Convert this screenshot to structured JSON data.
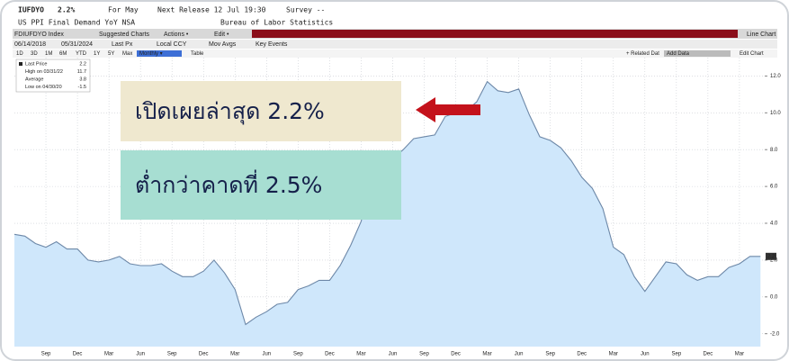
{
  "header": {
    "ticker": "IUFDYO",
    "last": "2.2%",
    "period": "For May",
    "next_release": "Next Release 12 Jul 19:30",
    "survey": "Survey --",
    "description": "US PPI Final Demand YoY NSA",
    "source": "Bureau of Labor Statistics"
  },
  "toolbar": {
    "security": "FDIUFDYO Index",
    "suggested": "Suggested Charts",
    "actions": "Actions •",
    "edit": "Edit •",
    "chart_type": "Line Chart"
  },
  "settings": {
    "start_date": "06/14/2018",
    "end_date": "05/31/2024",
    "field": "Last Px",
    "currency": "Local CCY",
    "mov_avgs": "Mov Avgs",
    "key_events": "Key Events"
  },
  "periods": [
    "1D",
    "3D",
    "1M",
    "6M",
    "YTD",
    "1Y",
    "5Y",
    "Max",
    "Monthly ▾",
    "Table"
  ],
  "right_tools": {
    "related": "+ Related Dat",
    "add_data": "Add Data",
    "edit_chart": "Edit Chart"
  },
  "overlays": [
    "เปิดเผยล่าสุด 2.2%",
    "ต่ำกว่าคาดที่ 2.5%"
  ],
  "chart_data": {
    "type": "area",
    "legend": [
      {
        "label": "Last Price",
        "value": 2.2
      },
      {
        "label": "High on 03/31/22",
        "value": 11.7
      },
      {
        "label": "Average",
        "value": 3.8
      },
      {
        "label": "Low on 04/30/20",
        "value": -1.5
      }
    ],
    "categories": [
      null,
      null,
      null,
      "Sep",
      null,
      null,
      "Dec",
      null,
      null,
      "Mar",
      null,
      null,
      "Jun",
      null,
      null,
      "Sep",
      null,
      null,
      "Dec",
      null,
      null,
      "Mar",
      null,
      null,
      "Jun",
      null,
      null,
      "Sep",
      null,
      null,
      "Dec",
      null,
      null,
      "Mar",
      null,
      null,
      "Jun",
      null,
      null,
      "Sep",
      null,
      null,
      "Dec",
      null,
      null,
      "Mar",
      null,
      null,
      "Jun",
      null,
      null,
      "Sep",
      null,
      null,
      "Dec",
      null,
      null,
      "Mar",
      null,
      null,
      "Jun",
      null,
      null,
      "Sep",
      null,
      null,
      "Dec",
      null,
      null,
      "Mar",
      null,
      null
    ],
    "series": [
      {
        "name": "Last Price",
        "color": "#6d88a8",
        "fill": "#cfe7fb",
        "values": [
          3.4,
          3.3,
          2.9,
          2.7,
          3.0,
          2.6,
          2.6,
          2.0,
          1.9,
          2.0,
          2.2,
          1.8,
          1.7,
          1.7,
          1.8,
          1.4,
          1.1,
          1.1,
          1.4,
          2.0,
          1.3,
          0.4,
          -1.5,
          -1.1,
          -0.8,
          -0.4,
          -0.3,
          0.4,
          0.6,
          0.9,
          0.9,
          1.7,
          2.8,
          4.1,
          6.3,
          6.9,
          7.5,
          8.0,
          8.6,
          8.7,
          8.8,
          9.8,
          10.0,
          10.1,
          10.6,
          11.7,
          11.2,
          11.1,
          11.3,
          9.9,
          8.7,
          8.5,
          8.1,
          7.4,
          6.5,
          5.9,
          4.8,
          2.7,
          2.3,
          1.1,
          0.3,
          1.1,
          1.9,
          1.8,
          1.2,
          0.9,
          1.1,
          1.1,
          1.6,
          1.8,
          2.2,
          2.2
        ]
      }
    ],
    "ylim": [
      -2.7,
      13.0
    ],
    "yticks": [
      {
        "value": -2,
        "label": "-2.0"
      },
      {
        "value": 0,
        "label": "0.0"
      },
      {
        "value": 2,
        "label": "2.0"
      },
      {
        "value": 4,
        "label": "4.0"
      },
      {
        "value": 6,
        "label": "6.0"
      },
      {
        "value": 8,
        "label": "8.0"
      },
      {
        "value": 10,
        "label": "10.0"
      },
      {
        "value": 12,
        "label": "12.0"
      }
    ],
    "grid": true
  }
}
